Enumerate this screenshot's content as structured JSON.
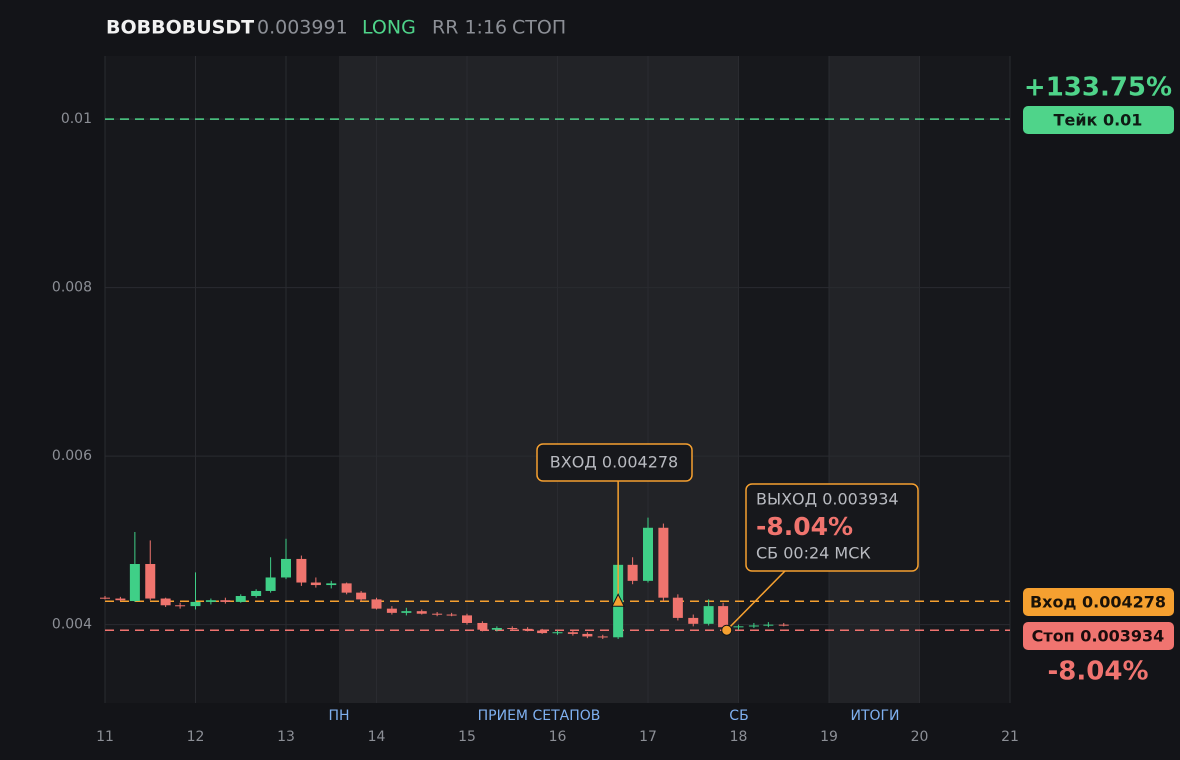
{
  "chart_data": {
    "type": "candlestick",
    "header": {
      "symbol": "BOBBOBUSDT",
      "price": "0.003991",
      "side": "LONG",
      "rr": "RR 1:16",
      "status": "СТОП"
    },
    "xlim": [
      11,
      21
    ],
    "xticks": [
      11,
      12,
      13,
      14,
      15,
      16,
      17,
      18,
      19,
      20,
      21
    ],
    "ylim": [
      0.00307,
      0.01075
    ],
    "yticks": [
      0.004,
      0.006,
      0.008,
      0.01
    ],
    "grid": true,
    "up_color": "#3fcf87",
    "down_color": "#f0746e",
    "period_labels": [
      "ПН",
      "ПРИЕМ СЕТАПОВ",
      "СБ",
      "ИТОГИ"
    ],
    "candles": {
      "x": [
        11.0,
        11.17,
        11.33,
        11.5,
        11.67,
        11.83,
        12.0,
        12.17,
        12.33,
        12.5,
        12.67,
        12.83,
        13.0,
        13.17,
        13.33,
        13.5,
        13.67,
        13.83,
        14.0,
        14.17,
        14.33,
        14.5,
        14.67,
        14.83,
        15.0,
        15.17,
        15.33,
        15.5,
        15.67,
        15.83,
        16.0,
        16.17,
        16.33,
        16.5,
        16.67,
        16.83,
        17.0,
        17.17,
        17.33,
        17.5,
        17.67,
        17.83,
        18.0,
        18.17,
        18.33,
        18.5
      ],
      "open": [
        0.00432,
        0.00431,
        0.00428,
        0.00472,
        0.00431,
        0.00423,
        0.00422,
        0.00427,
        0.00429,
        0.00427,
        0.00434,
        0.0044,
        0.00456,
        0.00478,
        0.0045,
        0.00447,
        0.00449,
        0.00438,
        0.0043,
        0.00419,
        0.00414,
        0.00416,
        0.00413,
        0.00412,
        0.00411,
        0.00402,
        0.00394,
        0.00396,
        0.00395,
        0.00393,
        0.0039,
        0.00391,
        0.00389,
        0.00386,
        0.00385,
        0.00471,
        0.00452,
        0.00515,
        0.00432,
        0.00408,
        0.00401,
        0.00422,
        0.00397,
        0.00398,
        0.00399,
        0.004
      ],
      "high": [
        0.00434,
        0.00433,
        0.0051,
        0.005,
        0.00432,
        0.00426,
        0.00462,
        0.00431,
        0.00432,
        0.00436,
        0.00442,
        0.0048,
        0.00502,
        0.00482,
        0.00456,
        0.00452,
        0.0045,
        0.0044,
        0.00432,
        0.00422,
        0.0042,
        0.00418,
        0.00415,
        0.00414,
        0.00413,
        0.00404,
        0.00398,
        0.00398,
        0.00397,
        0.00395,
        0.00393,
        0.00393,
        0.00391,
        0.00388,
        0.00527,
        0.0048,
        0.00527,
        0.0052,
        0.00436,
        0.00412,
        0.0043,
        0.00426,
        0.004,
        0.00402,
        0.00403,
        0.00402
      ],
      "low": [
        0.0043,
        0.00428,
        0.00427,
        0.00429,
        0.00421,
        0.00419,
        0.00418,
        0.00424,
        0.00425,
        0.00426,
        0.00432,
        0.00438,
        0.00454,
        0.00446,
        0.00444,
        0.00443,
        0.00436,
        0.00428,
        0.00418,
        0.00412,
        0.00411,
        0.00412,
        0.0041,
        0.0041,
        0.004,
        0.00392,
        0.00392,
        0.00393,
        0.00392,
        0.00389,
        0.00388,
        0.00387,
        0.00384,
        0.00383,
        0.00383,
        0.00448,
        0.0045,
        0.00428,
        0.00405,
        0.00398,
        0.00399,
        0.00395,
        0.00394,
        0.00396,
        0.00397,
        0.00398
      ],
      "close": [
        0.00431,
        0.00429,
        0.00472,
        0.00431,
        0.00423,
        0.00422,
        0.00427,
        0.00429,
        0.00427,
        0.00434,
        0.0044,
        0.00456,
        0.00478,
        0.0045,
        0.00447,
        0.00449,
        0.00438,
        0.0043,
        0.00419,
        0.00414,
        0.00416,
        0.00413,
        0.00412,
        0.00411,
        0.00402,
        0.00394,
        0.00396,
        0.00395,
        0.00393,
        0.0039,
        0.00391,
        0.00389,
        0.00386,
        0.00385,
        0.00471,
        0.00452,
        0.00515,
        0.00432,
        0.00408,
        0.00401,
        0.00422,
        0.00397,
        0.00398,
        0.00399,
        0.004,
        0.00399
      ]
    },
    "levels": [
      {
        "value": 0.01,
        "label": "Тейк 0.01",
        "change": "+133.75%",
        "color": "#4fd48a",
        "text_color": "#0f1a14"
      },
      {
        "value": 0.004278,
        "label": "Вход 0.004278",
        "color": "#f5a030",
        "text_color": "#1a1208"
      },
      {
        "value": 0.003934,
        "label": "Стоп 0.003934",
        "change": "-8.04%",
        "color": "#f07470",
        "text_color": "#1a0c0c"
      }
    ],
    "entry": {
      "x": 16.67,
      "y": 0.004278,
      "label": "ВХОД 0.004278",
      "color": "#f5a030"
    },
    "exit": {
      "x": 17.87,
      "y": 0.003934,
      "label": "ВЫХОД 0.003934",
      "change": "-8.04%",
      "time": "СБ 00:24 МСК",
      "color": "#f5a030"
    }
  }
}
